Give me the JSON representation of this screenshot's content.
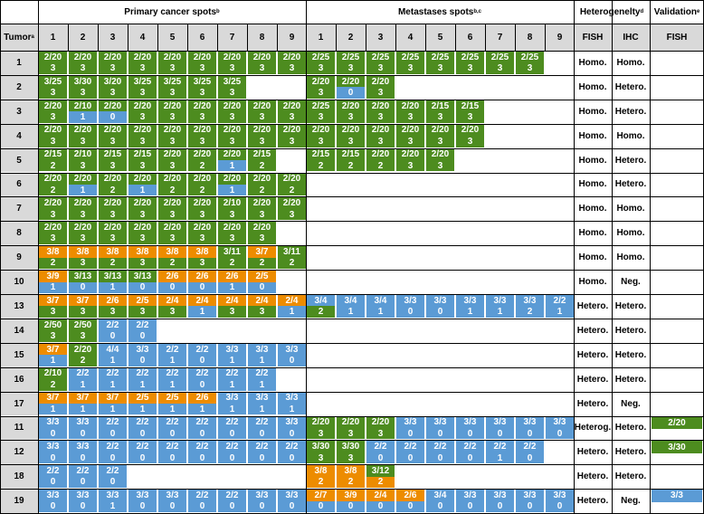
{
  "headers": {
    "tumor": "Tumor",
    "tumor_sup": "a",
    "primary": "Primary cancer spots",
    "primary_sup": "b",
    "metastases": "Metastases spots",
    "metastases_sup": "b,c",
    "heterogeneity": "Heterogenelty",
    "heterogeneity_sup": "d",
    "validation": "Validation",
    "validation_sup": "e",
    "spot_numbers": [
      "1",
      "2",
      "3",
      "4",
      "5",
      "6",
      "7",
      "8",
      "9"
    ],
    "fish": "FISH",
    "ihc": "IHC",
    "val_fish": "FISH"
  },
  "colors": {
    "green": "#4d8c1f",
    "blue": "#5b9bd5",
    "orange": "#ed8c00",
    "header": "#d9d9d9"
  },
  "rows": [
    {
      "tumor": "1",
      "primary": [
        [
          "2/20",
          "3",
          "g"
        ],
        [
          "2/20",
          "3",
          "g"
        ],
        [
          "2/20",
          "3",
          "g"
        ],
        [
          "2/20",
          "3",
          "g"
        ],
        [
          "2/20",
          "3",
          "g"
        ],
        [
          "2/20",
          "3",
          "g"
        ],
        [
          "2/20",
          "3",
          "g"
        ],
        [
          "2/20",
          "3",
          "g"
        ],
        [
          "2/20",
          "3",
          "g"
        ]
      ],
      "metastases": [
        [
          "2/25",
          "3",
          "g"
        ],
        [
          "2/25",
          "3",
          "g"
        ],
        [
          "2/25",
          "3",
          "g"
        ],
        [
          "2/25",
          "3",
          "g"
        ],
        [
          "2/25",
          "3",
          "g"
        ],
        [
          "2/25",
          "3",
          "g"
        ],
        [
          "2/25",
          "3",
          "g"
        ],
        [
          "2/25",
          "3",
          "g"
        ]
      ],
      "fish": "Homo.",
      "ihc": "Homo.",
      "validation": null
    },
    {
      "tumor": "2",
      "primary": [
        [
          "3/25",
          "3",
          "g"
        ],
        [
          "3/30",
          "3",
          "g"
        ],
        [
          "3/20",
          "3",
          "g"
        ],
        [
          "3/25",
          "3",
          "g"
        ],
        [
          "3/25",
          "3",
          "g"
        ],
        [
          "3/25",
          "3",
          "g"
        ],
        [
          "3/25",
          "3",
          "g"
        ]
      ],
      "metastases": [
        [
          "2/20",
          "3",
          "g"
        ],
        [
          "2/20",
          "0",
          "gb"
        ],
        [
          "2/20",
          "3",
          "g"
        ]
      ],
      "fish": "Homo.",
      "ihc": "Hetero.",
      "validation": null
    },
    {
      "tumor": "3",
      "primary": [
        [
          "2/20",
          "3",
          "g"
        ],
        [
          "2/10",
          "1",
          "gb"
        ],
        [
          "2/20",
          "0",
          "gb"
        ],
        [
          "2/20",
          "3",
          "g"
        ],
        [
          "2/20",
          "3",
          "g"
        ],
        [
          "2/20",
          "3",
          "g"
        ],
        [
          "2/20",
          "3",
          "g"
        ],
        [
          "2/20",
          "3",
          "g"
        ],
        [
          "2/20",
          "3",
          "g"
        ]
      ],
      "metastases": [
        [
          "2/25",
          "3",
          "g"
        ],
        [
          "2/20",
          "3",
          "g"
        ],
        [
          "2/20",
          "3",
          "g"
        ],
        [
          "2/20",
          "3",
          "g"
        ],
        [
          "2/15",
          "3",
          "g"
        ],
        [
          "2/15",
          "3",
          "g"
        ]
      ],
      "fish": "Homo.",
      "ihc": "Hetero.",
      "validation": null
    },
    {
      "tumor": "4",
      "primary": [
        [
          "2/20",
          "3",
          "g"
        ],
        [
          "2/20",
          "3",
          "g"
        ],
        [
          "2/20",
          "3",
          "g"
        ],
        [
          "2/20",
          "3",
          "g"
        ],
        [
          "2/20",
          "3",
          "g"
        ],
        [
          "2/20",
          "3",
          "g"
        ],
        [
          "2/20",
          "3",
          "g"
        ],
        [
          "2/20",
          "3",
          "g"
        ],
        [
          "2/20",
          "3",
          "g"
        ]
      ],
      "metastases": [
        [
          "2/20",
          "3",
          "g"
        ],
        [
          "2/20",
          "3",
          "g"
        ],
        [
          "2/20",
          "3",
          "g"
        ],
        [
          "2/20",
          "3",
          "g"
        ],
        [
          "2/20",
          "3",
          "g"
        ],
        [
          "2/20",
          "3",
          "g"
        ]
      ],
      "fish": "Homo.",
      "ihc": "Homo.",
      "validation": null
    },
    {
      "tumor": "5",
      "primary": [
        [
          "2/15",
          "2",
          "g"
        ],
        [
          "2/10",
          "3",
          "g"
        ],
        [
          "2/15",
          "3",
          "g"
        ],
        [
          "2/15",
          "3",
          "g"
        ],
        [
          "2/20",
          "3",
          "g"
        ],
        [
          "2/20",
          "2",
          "g"
        ],
        [
          "2/20",
          "1",
          "gb"
        ],
        [
          "2/15",
          "2",
          "g"
        ]
      ],
      "metastases": [
        [
          "2/15",
          "2",
          "g"
        ],
        [
          "2/15",
          "2",
          "g"
        ],
        [
          "2/20",
          "2",
          "g"
        ],
        [
          "2/20",
          "3",
          "g"
        ],
        [
          "2/20",
          "3",
          "g"
        ]
      ],
      "fish": "Homo.",
      "ihc": "Hetero.",
      "validation": null
    },
    {
      "tumor": "6",
      "primary": [
        [
          "2/20",
          "2",
          "g"
        ],
        [
          "2/20",
          "1",
          "gb"
        ],
        [
          "2/20",
          "2",
          "g"
        ],
        [
          "2/20",
          "1",
          "gb"
        ],
        [
          "2/20",
          "2",
          "g"
        ],
        [
          "2/20",
          "2",
          "g"
        ],
        [
          "2/20",
          "1",
          "gb"
        ],
        [
          "2/20",
          "2",
          "g"
        ],
        [
          "2/20",
          "2",
          "g"
        ]
      ],
      "metastases": [],
      "fish": "Homo.",
      "ihc": "Hetero.",
      "validation": null
    },
    {
      "tumor": "7",
      "primary": [
        [
          "2/20",
          "3",
          "g"
        ],
        [
          "2/20",
          "3",
          "g"
        ],
        [
          "2/20",
          "3",
          "g"
        ],
        [
          "2/20",
          "3",
          "g"
        ],
        [
          "2/20",
          "3",
          "g"
        ],
        [
          "2/20",
          "3",
          "g"
        ],
        [
          "2/10",
          "3",
          "g"
        ],
        [
          "2/20",
          "3",
          "g"
        ],
        [
          "2/20",
          "3",
          "g"
        ]
      ],
      "metastases": [],
      "fish": "Homo.",
      "ihc": "Homo.",
      "validation": null
    },
    {
      "tumor": "8",
      "primary": [
        [
          "2/20",
          "3",
          "g"
        ],
        [
          "2/20",
          "3",
          "g"
        ],
        [
          "2/20",
          "3",
          "g"
        ],
        [
          "2/20",
          "3",
          "g"
        ],
        [
          "2/20",
          "3",
          "g"
        ],
        [
          "2/20",
          "3",
          "g"
        ],
        [
          "2/20",
          "3",
          "g"
        ],
        [
          "2/20",
          "3",
          "g"
        ]
      ],
      "metastases": [],
      "fish": "Homo.",
      "ihc": "Homo.",
      "validation": null
    },
    {
      "tumor": "9",
      "primary": [
        [
          "3/8",
          "2",
          "og"
        ],
        [
          "3/8",
          "3",
          "og"
        ],
        [
          "3/8",
          "2",
          "og"
        ],
        [
          "3/8",
          "3",
          "og"
        ],
        [
          "3/8",
          "2",
          "og"
        ],
        [
          "3/8",
          "3",
          "og"
        ],
        [
          "3/11",
          "2",
          "g"
        ],
        [
          "3/7",
          "2",
          "og"
        ],
        [
          "3/11",
          "2",
          "g"
        ]
      ],
      "metastases": [],
      "fish": "Homo.",
      "ihc": "Homo.",
      "validation": null
    },
    {
      "tumor": "10",
      "primary": [
        [
          "3/9",
          "1",
          "ob"
        ],
        [
          "3/13",
          "0",
          "gb"
        ],
        [
          "3/13",
          "1",
          "gb"
        ],
        [
          "3/13",
          "0",
          "gb"
        ],
        [
          "2/6",
          "0",
          "ob"
        ],
        [
          "2/6",
          "0",
          "ob"
        ],
        [
          "2/6",
          "1",
          "ob"
        ],
        [
          "2/5",
          "0",
          "ob"
        ]
      ],
      "metastases": [],
      "fish": "Homo.",
      "ihc": "Neg.",
      "validation": null
    },
    {
      "tumor": "13",
      "primary": [
        [
          "3/7",
          "3",
          "og"
        ],
        [
          "3/7",
          "3",
          "og"
        ],
        [
          "2/6",
          "3",
          "og"
        ],
        [
          "2/5",
          "3",
          "og"
        ],
        [
          "2/4",
          "3",
          "og"
        ],
        [
          "2/4",
          "1",
          "ob"
        ],
        [
          "2/4",
          "3",
          "og"
        ],
        [
          "2/4",
          "3",
          "og"
        ],
        [
          "2/4",
          "1",
          "ob"
        ]
      ],
      "metastases": [
        [
          "3/4",
          "2",
          "bg"
        ],
        [
          "3/4",
          "1",
          "b"
        ],
        [
          "3/4",
          "1",
          "b"
        ],
        [
          "3/3",
          "0",
          "b"
        ],
        [
          "3/3",
          "0",
          "b"
        ],
        [
          "3/3",
          "1",
          "b"
        ],
        [
          "3/3",
          "1",
          "b"
        ],
        [
          "3/3",
          "2",
          "b"
        ],
        [
          "2/2",
          "1",
          "b"
        ]
      ],
      "fish": "Hetero.",
      "ihc": "Hetero.",
      "validation": null
    },
    {
      "tumor": "14",
      "primary": [
        [
          "2/50",
          "3",
          "g"
        ],
        [
          "2/50",
          "3",
          "g"
        ],
        [
          "2/2",
          "0",
          "b"
        ],
        [
          "2/2",
          "0",
          "b"
        ]
      ],
      "metastases": [],
      "fish": "Hetero.",
      "ihc": "Hetero.",
      "validation": null
    },
    {
      "tumor": "15",
      "primary": [
        [
          "3/7",
          "1",
          "ob"
        ],
        [
          "2/20",
          "2",
          "g"
        ],
        [
          "4/4",
          "1",
          "b"
        ],
        [
          "3/3",
          "0",
          "b"
        ],
        [
          "2/2",
          "1",
          "b"
        ],
        [
          "2/2",
          "0",
          "b"
        ],
        [
          "3/3",
          "1",
          "b"
        ],
        [
          "3/3",
          "1",
          "b"
        ],
        [
          "3/3",
          "0",
          "b"
        ]
      ],
      "metastases": [],
      "fish": "Hetero.",
      "ihc": "Hetero.",
      "validation": null
    },
    {
      "tumor": "16",
      "primary": [
        [
          "2/10",
          "2",
          "g"
        ],
        [
          "2/2",
          "1",
          "b"
        ],
        [
          "2/2",
          "1",
          "b"
        ],
        [
          "2/2",
          "1",
          "b"
        ],
        [
          "2/2",
          "1",
          "b"
        ],
        [
          "2/2",
          "0",
          "b"
        ],
        [
          "2/2",
          "1",
          "b"
        ],
        [
          "2/2",
          "1",
          "b"
        ]
      ],
      "metastases": [],
      "fish": "Hetero.",
      "ihc": "Hetero.",
      "validation": null
    },
    {
      "tumor": "17",
      "primary": [
        [
          "3/7",
          "1",
          "ob"
        ],
        [
          "3/7",
          "1",
          "ob"
        ],
        [
          "3/7",
          "1",
          "ob"
        ],
        [
          "2/5",
          "1",
          "ob"
        ],
        [
          "2/5",
          "1",
          "ob"
        ],
        [
          "2/6",
          "1",
          "ob"
        ],
        [
          "3/3",
          "1",
          "b"
        ],
        [
          "3/3",
          "1",
          "b"
        ],
        [
          "3/3",
          "1",
          "b"
        ]
      ],
      "metastases": [],
      "fish": "Hetero.",
      "ihc": "Neg.",
      "validation": null
    },
    {
      "tumor": "11",
      "primary": [
        [
          "3/3",
          "0",
          "b"
        ],
        [
          "3/3",
          "0",
          "b"
        ],
        [
          "2/2",
          "0",
          "b"
        ],
        [
          "2/2",
          "0",
          "b"
        ],
        [
          "2/2",
          "0",
          "b"
        ],
        [
          "2/2",
          "0",
          "b"
        ],
        [
          "2/2",
          "0",
          "b"
        ],
        [
          "2/2",
          "0",
          "b"
        ],
        [
          "3/3",
          "0",
          "b"
        ]
      ],
      "metastases": [
        [
          "2/20",
          "3",
          "g"
        ],
        [
          "2/20",
          "3",
          "g"
        ],
        [
          "2/20",
          "3",
          "g"
        ],
        [
          "3/3",
          "0",
          "b"
        ],
        [
          "3/3",
          "0",
          "b"
        ],
        [
          "3/3",
          "0",
          "b"
        ],
        [
          "3/3",
          "0",
          "b"
        ],
        [
          "3/3",
          "0",
          "b"
        ],
        [
          "3/3",
          "0",
          "b"
        ]
      ],
      "fish": "Heterog.",
      "ihc": "Hetero.",
      "validation": [
        "2/20",
        "g"
      ]
    },
    {
      "tumor": "12",
      "primary": [
        [
          "3/3",
          "0",
          "b"
        ],
        [
          "3/3",
          "0",
          "b"
        ],
        [
          "2/2",
          "0",
          "b"
        ],
        [
          "2/2",
          "0",
          "b"
        ],
        [
          "2/2",
          "0",
          "b"
        ],
        [
          "2/2",
          "0",
          "b"
        ],
        [
          "2/2",
          "0",
          "b"
        ],
        [
          "2/2",
          "0",
          "b"
        ],
        [
          "2/2",
          "0",
          "b"
        ]
      ],
      "metastases": [
        [
          "3/30",
          "3",
          "g"
        ],
        [
          "3/30",
          "3",
          "g"
        ],
        [
          "2/2",
          "0",
          "b"
        ],
        [
          "2/2",
          "0",
          "b"
        ],
        [
          "2/2",
          "0",
          "b"
        ],
        [
          "2/2",
          "0",
          "b"
        ],
        [
          "2/2",
          "1",
          "b"
        ],
        [
          "2/2",
          "0",
          "b"
        ]
      ],
      "fish": "Hetero.",
      "ihc": "Hetero.",
      "validation": [
        "3/30",
        "g"
      ]
    },
    {
      "tumor": "18",
      "primary": [
        [
          "2/2",
          "0",
          "b"
        ],
        [
          "2/2",
          "0",
          "b"
        ],
        [
          "2/2",
          "0",
          "b"
        ]
      ],
      "metastases": [
        [
          "3/8",
          "2",
          "o"
        ],
        [
          "3/8",
          "2",
          "o"
        ],
        [
          "3/12",
          "2",
          "go"
        ]
      ],
      "fish": "Hetero.",
      "ihc": "Hetero.",
      "validation": null
    },
    {
      "tumor": "19",
      "primary": [
        [
          "3/3",
          "0",
          "b"
        ],
        [
          "3/3",
          "0",
          "b"
        ],
        [
          "3/3",
          "1",
          "b"
        ],
        [
          "3/3",
          "0",
          "b"
        ],
        [
          "3/3",
          "0",
          "b"
        ],
        [
          "2/2",
          "0",
          "b"
        ],
        [
          "2/2",
          "0",
          "b"
        ],
        [
          "3/3",
          "0",
          "b"
        ],
        [
          "3/3",
          "0",
          "b"
        ]
      ],
      "metastases": [
        [
          "2/7",
          "0",
          "ob"
        ],
        [
          "3/9",
          "0",
          "ob"
        ],
        [
          "2/4",
          "0",
          "ob"
        ],
        [
          "2/6",
          "0",
          "ob"
        ],
        [
          "3/4",
          "0",
          "b"
        ],
        [
          "3/3",
          "0",
          "b"
        ],
        [
          "3/3",
          "0",
          "b"
        ],
        [
          "3/3",
          "0",
          "b"
        ],
        [
          "3/3",
          "0",
          "b"
        ]
      ],
      "fish": "Hetero.",
      "ihc": "Neg.",
      "validation": [
        "3/3",
        "b"
      ]
    }
  ]
}
